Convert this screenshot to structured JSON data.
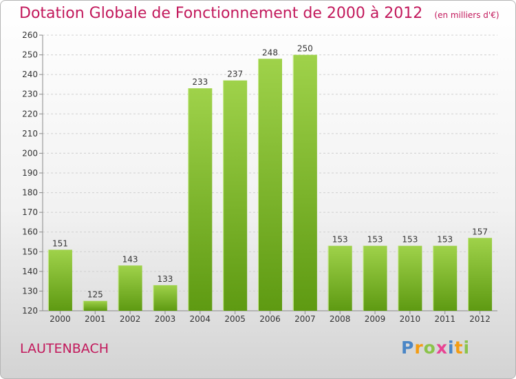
{
  "title": "Dotation Globale de Fonctionnement de 2000 à 2012",
  "unit": "(en milliers d'€)",
  "commune": "LAUTENBACH",
  "logo": {
    "letters": [
      "P",
      "r",
      "o",
      "x",
      "i",
      "t",
      "i"
    ],
    "colors": [
      "#4a86c6",
      "#f39c12",
      "#8bc34a",
      "#e84393",
      "#4a86c6",
      "#f39c12",
      "#8bc34a"
    ]
  },
  "colors": {
    "bar_light": "#9fd24a",
    "bar_dark": "#5e9a12",
    "title": "#c2185b"
  },
  "chart_data": {
    "type": "bar",
    "categories": [
      "2000",
      "2001",
      "2002",
      "2003",
      "2004",
      "2005",
      "2006",
      "2007",
      "2008",
      "2009",
      "2010",
      "2011",
      "2012"
    ],
    "values": [
      151,
      125,
      143,
      133,
      233,
      237,
      248,
      250,
      153,
      153,
      153,
      153,
      157
    ],
    "ylim": [
      120,
      260
    ],
    "yticks": [
      120,
      130,
      140,
      150,
      160,
      170,
      180,
      190,
      200,
      210,
      220,
      230,
      240,
      250,
      260
    ],
    "grid": true
  }
}
